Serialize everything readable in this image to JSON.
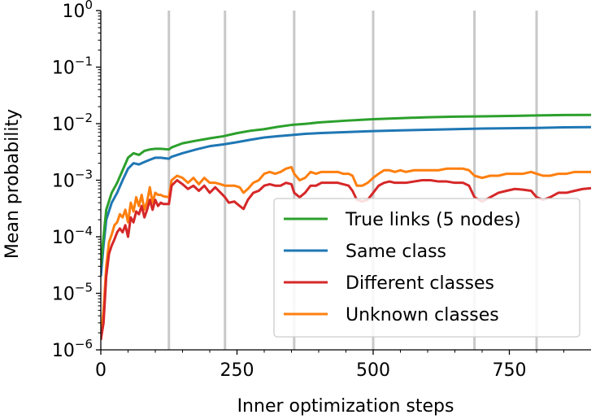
{
  "chart_data": {
    "type": "line",
    "xlabel": "Inner optimization steps",
    "ylabel": "Mean probability",
    "xlim": [
      0,
      900
    ],
    "ylim": [
      1e-06,
      1
    ],
    "yscale": "log",
    "xticks": [
      0,
      250,
      500,
      750
    ],
    "xtick_labels": [
      "0",
      "250",
      "500",
      "750"
    ],
    "yticks": [
      {
        "value": 1e-06,
        "base": "10",
        "exp": "−6"
      },
      {
        "value": 1e-05,
        "base": "10",
        "exp": "−5"
      },
      {
        "value": 0.0001,
        "base": "10",
        "exp": "−4"
      },
      {
        "value": 0.001,
        "base": "10",
        "exp": "−3"
      },
      {
        "value": 0.01,
        "base": "10",
        "exp": "−2"
      },
      {
        "value": 0.1,
        "base": "10",
        "exp": "−1"
      },
      {
        "value": 1,
        "base": "10",
        "exp": "0"
      }
    ],
    "vertical_lines": [
      125,
      228,
      355,
      500,
      686,
      800
    ],
    "grid": false,
    "legend_position": "lower-right",
    "series": [
      {
        "name": "True links (5 nodes)",
        "color": "#2ca02c",
        "points": [
          [
            0,
            3e-05
          ],
          [
            5,
            0.0001
          ],
          [
            10,
            0.0003
          ],
          [
            20,
            0.0006
          ],
          [
            30,
            0.0009
          ],
          [
            40,
            0.0015
          ],
          [
            50,
            0.0025
          ],
          [
            60,
            0.003
          ],
          [
            70,
            0.0028
          ],
          [
            80,
            0.0033
          ],
          [
            90,
            0.0035
          ],
          [
            100,
            0.0036
          ],
          [
            110,
            0.0036
          ],
          [
            125,
            0.0035
          ],
          [
            130,
            0.0038
          ],
          [
            150,
            0.0045
          ],
          [
            175,
            0.005
          ],
          [
            200,
            0.0055
          ],
          [
            225,
            0.006
          ],
          [
            250,
            0.0068
          ],
          [
            275,
            0.0075
          ],
          [
            300,
            0.008
          ],
          [
            325,
            0.0088
          ],
          [
            350,
            0.0095
          ],
          [
            375,
            0.0099
          ],
          [
            400,
            0.0105
          ],
          [
            450,
            0.0113
          ],
          [
            500,
            0.012
          ],
          [
            550,
            0.0125
          ],
          [
            600,
            0.013
          ],
          [
            650,
            0.0133
          ],
          [
            700,
            0.0135
          ],
          [
            750,
            0.0137
          ],
          [
            800,
            0.014
          ],
          [
            850,
            0.0142
          ],
          [
            900,
            0.0143
          ]
        ]
      },
      {
        "name": "Same class",
        "color": "#1f77b4",
        "points": [
          [
            0,
            2e-05
          ],
          [
            5,
            7e-05
          ],
          [
            10,
            0.0002
          ],
          [
            20,
            0.0004
          ],
          [
            30,
            0.0006
          ],
          [
            40,
            0.001
          ],
          [
            50,
            0.0016
          ],
          [
            60,
            0.002
          ],
          [
            70,
            0.0019
          ],
          [
            80,
            0.0021
          ],
          [
            90,
            0.0023
          ],
          [
            100,
            0.0025
          ],
          [
            110,
            0.0025
          ],
          [
            125,
            0.0024
          ],
          [
            130,
            0.0026
          ],
          [
            150,
            0.003
          ],
          [
            175,
            0.0035
          ],
          [
            200,
            0.004
          ],
          [
            225,
            0.0043
          ],
          [
            250,
            0.0047
          ],
          [
            275,
            0.0052
          ],
          [
            300,
            0.0057
          ],
          [
            325,
            0.006
          ],
          [
            350,
            0.0063
          ],
          [
            375,
            0.0066
          ],
          [
            400,
            0.0068
          ],
          [
            450,
            0.0071
          ],
          [
            500,
            0.0074
          ],
          [
            550,
            0.0076
          ],
          [
            600,
            0.0078
          ],
          [
            650,
            0.008
          ],
          [
            700,
            0.0082
          ],
          [
            750,
            0.0083
          ],
          [
            800,
            0.0084
          ],
          [
            850,
            0.0086
          ],
          [
            900,
            0.0087
          ]
        ]
      },
      {
        "name": "Different classes",
        "color": "#d62728",
        "points": [
          [
            0,
            1.5e-06
          ],
          [
            5,
            3e-06
          ],
          [
            10,
            2e-05
          ],
          [
            15,
            5e-05
          ],
          [
            20,
            7e-05
          ],
          [
            25,
            9e-05
          ],
          [
            30,
            0.00012
          ],
          [
            35,
            0.00014
          ],
          [
            40,
            0.00012
          ],
          [
            45,
            0.00016
          ],
          [
            50,
            0.0001
          ],
          [
            55,
            0.00022
          ],
          [
            60,
            0.00018
          ],
          [
            65,
            0.00028
          ],
          [
            70,
            0.00025
          ],
          [
            75,
            0.00035
          ],
          [
            80,
            0.00022
          ],
          [
            85,
            0.0003
          ],
          [
            90,
            0.00045
          ],
          [
            95,
            0.0003
          ],
          [
            100,
            0.00045
          ],
          [
            105,
            0.00035
          ],
          [
            110,
            0.0004
          ],
          [
            115,
            0.00038
          ],
          [
            125,
            0.00038
          ],
          [
            130,
            0.0008
          ],
          [
            140,
            0.001
          ],
          [
            150,
            0.00085
          ],
          [
            160,
            0.0007
          ],
          [
            170,
            0.0008
          ],
          [
            180,
            0.00065
          ],
          [
            190,
            0.0008
          ],
          [
            200,
            0.0006
          ],
          [
            210,
            0.00075
          ],
          [
            220,
            0.0006
          ],
          [
            228,
            0.0005
          ],
          [
            235,
            0.0004
          ],
          [
            245,
            0.00042
          ],
          [
            255,
            0.00035
          ],
          [
            262,
            0.00031
          ],
          [
            270,
            0.00045
          ],
          [
            280,
            0.0006
          ],
          [
            290,
            0.00065
          ],
          [
            300,
            0.0008
          ],
          [
            310,
            0.00085
          ],
          [
            320,
            0.0008
          ],
          [
            330,
            0.0008
          ],
          [
            340,
            0.0009
          ],
          [
            350,
            0.00085
          ],
          [
            355,
            0.0006
          ],
          [
            365,
            0.0005
          ],
          [
            375,
            0.0006
          ],
          [
            385,
            0.0008
          ],
          [
            395,
            0.0008
          ],
          [
            405,
            0.0009
          ],
          [
            415,
            0.0009
          ],
          [
            425,
            0.0009
          ],
          [
            435,
            0.0009
          ],
          [
            445,
            0.00085
          ],
          [
            455,
            0.0008
          ],
          [
            462,
            0.00065
          ],
          [
            470,
            0.00045
          ],
          [
            480,
            0.00042
          ],
          [
            490,
            0.00045
          ],
          [
            500,
            0.0006
          ],
          [
            510,
            0.0008
          ],
          [
            520,
            0.0009
          ],
          [
            530,
            0.00095
          ],
          [
            540,
            0.0009
          ],
          [
            550,
            0.0009
          ],
          [
            560,
            0.0009
          ],
          [
            575,
            0.00095
          ],
          [
            590,
            0.001
          ],
          [
            605,
            0.001
          ],
          [
            620,
            0.00095
          ],
          [
            635,
            0.00095
          ],
          [
            650,
            0.0009
          ],
          [
            665,
            0.0009
          ],
          [
            676,
            0.0008
          ],
          [
            686,
            0.0005
          ],
          [
            700,
            0.00042
          ],
          [
            715,
            0.0005
          ],
          [
            730,
            0.0006
          ],
          [
            745,
            0.00065
          ],
          [
            760,
            0.0007
          ],
          [
            775,
            0.00068
          ],
          [
            790,
            0.00065
          ],
          [
            800,
            0.0005
          ],
          [
            812,
            0.00045
          ],
          [
            825,
            0.0005
          ],
          [
            840,
            0.0006
          ],
          [
            855,
            0.0006
          ],
          [
            870,
            0.00065
          ],
          [
            885,
            0.0007
          ],
          [
            900,
            0.00072
          ]
        ]
      },
      {
        "name": "Unknown classes",
        "color": "#ff7f0e",
        "points": [
          [
            0,
            1.5e-06
          ],
          [
            5,
            5e-06
          ],
          [
            10,
            3e-05
          ],
          [
            15,
            8e-05
          ],
          [
            20,
            0.00011
          ],
          [
            25,
            0.00016
          ],
          [
            30,
            0.00018
          ],
          [
            35,
            0.00025
          ],
          [
            40,
            0.00022
          ],
          [
            45,
            0.0003
          ],
          [
            50,
            0.00018
          ],
          [
            55,
            0.0004
          ],
          [
            60,
            0.00028
          ],
          [
            65,
            0.0005
          ],
          [
            70,
            0.00035
          ],
          [
            75,
            0.00055
          ],
          [
            80,
            0.0003
          ],
          [
            85,
            0.00042
          ],
          [
            90,
            0.00075
          ],
          [
            95,
            0.0004
          ],
          [
            100,
            0.0006
          ],
          [
            105,
            0.00055
          ],
          [
            110,
            0.00055
          ],
          [
            115,
            0.00052
          ],
          [
            125,
            0.0005
          ],
          [
            130,
            0.001
          ],
          [
            140,
            0.0012
          ],
          [
            150,
            0.0011
          ],
          [
            160,
            0.0009
          ],
          [
            170,
            0.0011
          ],
          [
            180,
            0.00085
          ],
          [
            190,
            0.0011
          ],
          [
            200,
            0.0009
          ],
          [
            210,
            0.0009
          ],
          [
            220,
            0.00085
          ],
          [
            228,
            0.0008
          ],
          [
            235,
            0.0008
          ],
          [
            245,
            0.0008
          ],
          [
            255,
            0.00075
          ],
          [
            262,
            0.0006
          ],
          [
            270,
            0.0007
          ],
          [
            280,
            0.0009
          ],
          [
            290,
            0.001
          ],
          [
            300,
            0.0013
          ],
          [
            310,
            0.0014
          ],
          [
            320,
            0.0013
          ],
          [
            330,
            0.0014
          ],
          [
            340,
            0.0016
          ],
          [
            350,
            0.0017
          ],
          [
            355,
            0.0013
          ],
          [
            365,
            0.001
          ],
          [
            375,
            0.0011
          ],
          [
            385,
            0.0014
          ],
          [
            395,
            0.0013
          ],
          [
            405,
            0.0014
          ],
          [
            415,
            0.0014
          ],
          [
            425,
            0.0014
          ],
          [
            435,
            0.0014
          ],
          [
            445,
            0.0013
          ],
          [
            455,
            0.0013
          ],
          [
            462,
            0.0012
          ],
          [
            470,
            0.0008
          ],
          [
            480,
            0.0008
          ],
          [
            490,
            0.0009
          ],
          [
            500,
            0.0011
          ],
          [
            510,
            0.0013
          ],
          [
            520,
            0.0015
          ],
          [
            530,
            0.0015
          ],
          [
            540,
            0.0014
          ],
          [
            550,
            0.0015
          ],
          [
            560,
            0.0014
          ],
          [
            575,
            0.0015
          ],
          [
            590,
            0.0015
          ],
          [
            605,
            0.0015
          ],
          [
            620,
            0.0015
          ],
          [
            635,
            0.0016
          ],
          [
            650,
            0.0016
          ],
          [
            665,
            0.0016
          ],
          [
            676,
            0.0015
          ],
          [
            686,
            0.0012
          ],
          [
            700,
            0.0011
          ],
          [
            715,
            0.0012
          ],
          [
            730,
            0.0012
          ],
          [
            745,
            0.0013
          ],
          [
            760,
            0.0013
          ],
          [
            775,
            0.0013
          ],
          [
            790,
            0.0014
          ],
          [
            800,
            0.0013
          ],
          [
            812,
            0.0012
          ],
          [
            825,
            0.0012
          ],
          [
            840,
            0.0013
          ],
          [
            855,
            0.0013
          ],
          [
            870,
            0.0014
          ],
          [
            885,
            0.0014
          ],
          [
            900,
            0.0014
          ]
        ]
      }
    ]
  }
}
